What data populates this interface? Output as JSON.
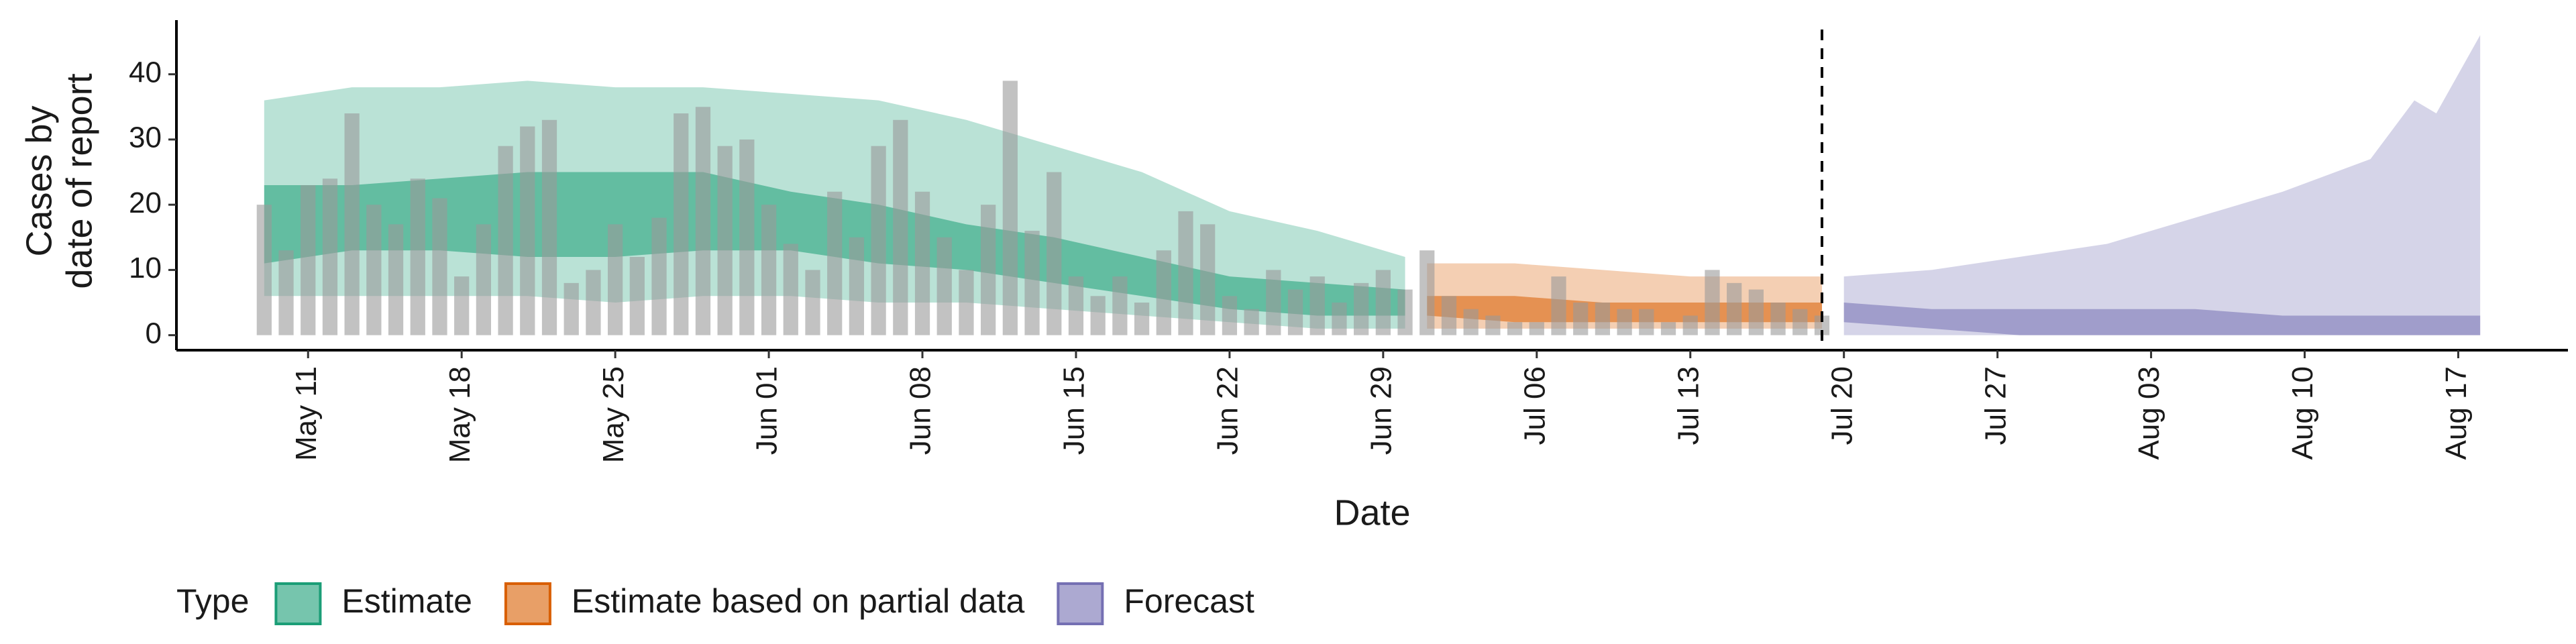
{
  "chart_data": {
    "type": "band",
    "y_label": [
      "Cases by",
      "date of report"
    ],
    "x_label": "Date",
    "xlim": [
      "May 05",
      "Aug 22"
    ],
    "xticks": [
      "May 11",
      "May 18",
      "May 25",
      "Jun 01",
      "Jun 08",
      "Jun 15",
      "Jun 22",
      "Jun 29",
      "Jul 06",
      "Jul 13",
      "Jul 20",
      "Jul 27",
      "Aug 03",
      "Aug 10",
      "Aug 17"
    ],
    "ylim": [
      -2.3,
      48.3
    ],
    "yticks": [
      0,
      10,
      20,
      30,
      40
    ],
    "grid": false,
    "reference_line_x": "Jul 19",
    "legend_title": "Type",
    "legend_position": "bottom",
    "bars": {
      "color": "#9a9a9a",
      "x": [
        "May 09",
        "May 10",
        "May 11",
        "May 12",
        "May 13",
        "May 14",
        "May 15",
        "May 16",
        "May 17",
        "May 18",
        "May 19",
        "May 20",
        "May 21",
        "May 22",
        "May 23",
        "May 24",
        "May 25",
        "May 26",
        "May 27",
        "May 28",
        "May 29",
        "May 30",
        "May 31",
        "Jun 01",
        "Jun 02",
        "Jun 03",
        "Jun 04",
        "Jun 05",
        "Jun 06",
        "Jun 07",
        "Jun 08",
        "Jun 09",
        "Jun 10",
        "Jun 11",
        "Jun 12",
        "Jun 13",
        "Jun 14",
        "Jun 15",
        "Jun 16",
        "Jun 17",
        "Jun 18",
        "Jun 19",
        "Jun 20",
        "Jun 21",
        "Jun 22",
        "Jun 23",
        "Jun 24",
        "Jun 25",
        "Jun 26",
        "Jun 27",
        "Jun 28",
        "Jun 29",
        "Jun 30",
        "Jul 01",
        "Jul 02",
        "Jul 03",
        "Jul 04",
        "Jul 05",
        "Jul 06",
        "Jul 07",
        "Jul 08",
        "Jul 09",
        "Jul 10",
        "Jul 11",
        "Jul 12",
        "Jul 13",
        "Jul 14",
        "Jul 15",
        "Jul 16",
        "Jul 17",
        "Jul 18",
        "Jul 19"
      ],
      "values": [
        20,
        13,
        23,
        24,
        34,
        20,
        17,
        24,
        21,
        9,
        17,
        29,
        32,
        33,
        8,
        10,
        17,
        12,
        18,
        34,
        35,
        29,
        30,
        20,
        14,
        10,
        22,
        15,
        29,
        33,
        22,
        15,
        10,
        20,
        39,
        16,
        25,
        9,
        6,
        9,
        5,
        13,
        19,
        17,
        6,
        4,
        10,
        7,
        9,
        5,
        8,
        10,
        7,
        13,
        6,
        4,
        3,
        2,
        2,
        9,
        5,
        5,
        4,
        4,
        2,
        3,
        10,
        8,
        7,
        5,
        4,
        3
      ]
    },
    "bands": [
      {
        "name": "Estimate",
        "color": "#1b9e77",
        "x": [
          "May 09",
          "May 13",
          "May 17",
          "May 21",
          "May 25",
          "May 29",
          "Jun 02",
          "Jun 06",
          "Jun 10",
          "Jun 14",
          "Jun 18",
          "Jun 22",
          "Jun 26",
          "Jun 30"
        ],
        "lower_90": [
          6,
          6,
          6,
          6,
          5,
          6,
          6,
          5,
          5,
          4,
          3,
          2,
          1,
          1
        ],
        "upper_90": [
          36,
          38,
          38,
          39,
          38,
          38,
          37,
          36,
          33,
          29,
          25,
          19,
          16,
          12
        ],
        "lower_50": [
          11,
          13,
          13,
          12,
          12,
          13,
          13,
          11,
          10,
          8,
          6,
          4,
          3,
          3
        ],
        "upper_50": [
          23,
          23,
          24,
          25,
          25,
          25,
          22,
          20,
          17,
          15,
          12,
          9,
          8,
          7
        ]
      },
      {
        "name": "Estimate based on partial data",
        "color": "#d95f02",
        "x": [
          "Jul 01",
          "Jul 05",
          "Jul 09",
          "Jul 13",
          "Jul 19"
        ],
        "lower_90": [
          1,
          1,
          1,
          1,
          1
        ],
        "upper_90": [
          11,
          11,
          10,
          9,
          9
        ],
        "lower_50": [
          3,
          2,
          2,
          2,
          2
        ],
        "upper_50": [
          6,
          6,
          5,
          5,
          5
        ]
      },
      {
        "name": "Forecast",
        "color": "#7570b3",
        "x": [
          "Jul 20",
          "Jul 24",
          "Jul 28",
          "Aug 01",
          "Aug 05",
          "Aug 09",
          "Aug 13",
          "Aug 15",
          "Aug 16",
          "Aug 18"
        ],
        "lower_90": [
          0,
          0,
          0,
          0,
          0,
          0,
          0,
          0,
          0,
          0
        ],
        "upper_90": [
          9,
          10,
          12,
          14,
          18,
          22,
          27,
          36,
          34,
          46
        ],
        "lower_50": [
          2,
          1,
          0,
          0,
          0,
          0,
          0,
          0,
          0,
          0
        ],
        "upper_50": [
          5,
          4,
          4,
          4,
          4,
          3,
          3,
          3,
          3,
          3
        ]
      }
    ]
  }
}
